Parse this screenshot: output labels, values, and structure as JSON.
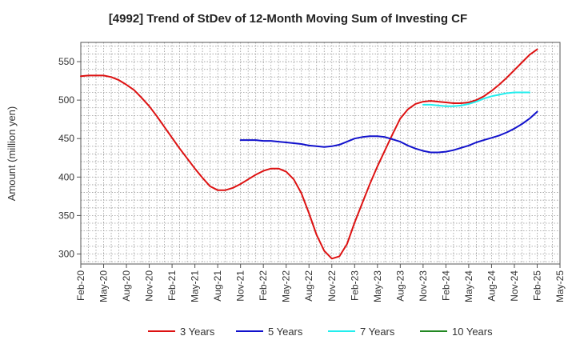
{
  "chart_data": {
    "type": "line",
    "title": "[4992]  Trend of StDev of 12-Month Moving Sum of Investing CF",
    "xlabel": "",
    "ylabel": "Amount (million yen)",
    "ylim": [
      287,
      575
    ],
    "yticks": [
      300,
      350,
      400,
      450,
      500,
      550
    ],
    "x_tick_labels": [
      "Feb-20",
      "May-20",
      "Aug-20",
      "Nov-20",
      "Feb-21",
      "May-21",
      "Aug-21",
      "Nov-21",
      "Feb-22",
      "May-22",
      "Aug-22",
      "Nov-22",
      "Feb-23",
      "May-23",
      "Aug-23",
      "Nov-23",
      "Feb-24",
      "May-24",
      "Aug-24",
      "Nov-24",
      "Feb-25",
      "May-25"
    ],
    "grid": true,
    "legend_position": "bottom",
    "series": [
      {
        "name": "3 Years",
        "color": "#dd1111",
        "start_index": 0,
        "values": [
          531,
          532,
          532,
          532,
          530,
          526,
          520,
          513,
          503,
          492,
          479,
          465,
          451,
          437,
          424,
          411,
          399,
          388,
          383,
          383,
          386,
          391,
          397,
          403,
          408,
          411,
          411,
          407,
          397,
          379,
          353,
          325,
          304,
          294,
          297,
          313,
          341,
          366,
          391,
          414,
          435,
          456,
          476,
          488,
          495,
          498,
          499,
          498,
          497,
          496,
          496,
          497,
          500,
          505,
          512,
          520,
          529,
          539,
          549,
          559,
          566
        ]
      },
      {
        "name": "5 Years",
        "color": "#1111cc",
        "start_index": 21,
        "values": [
          448,
          448,
          448,
          447,
          447,
          446,
          445,
          444,
          443,
          441,
          440,
          439,
          440,
          442,
          446,
          450,
          452,
          453,
          453,
          452,
          449,
          446,
          441,
          437,
          434,
          432,
          432,
          433,
          435,
          438,
          441,
          445,
          448,
          451,
          454,
          458,
          463,
          469,
          476,
          485
        ]
      },
      {
        "name": "7 Years",
        "color": "#22eeee",
        "start_index": 45,
        "values": [
          494,
          494,
          493,
          492,
          492,
          493,
          495,
          498,
          502,
          505,
          507,
          509,
          510,
          510,
          510
        ]
      },
      {
        "name": "10 Years",
        "color": "#228822",
        "start_index": 0,
        "values": []
      }
    ]
  }
}
